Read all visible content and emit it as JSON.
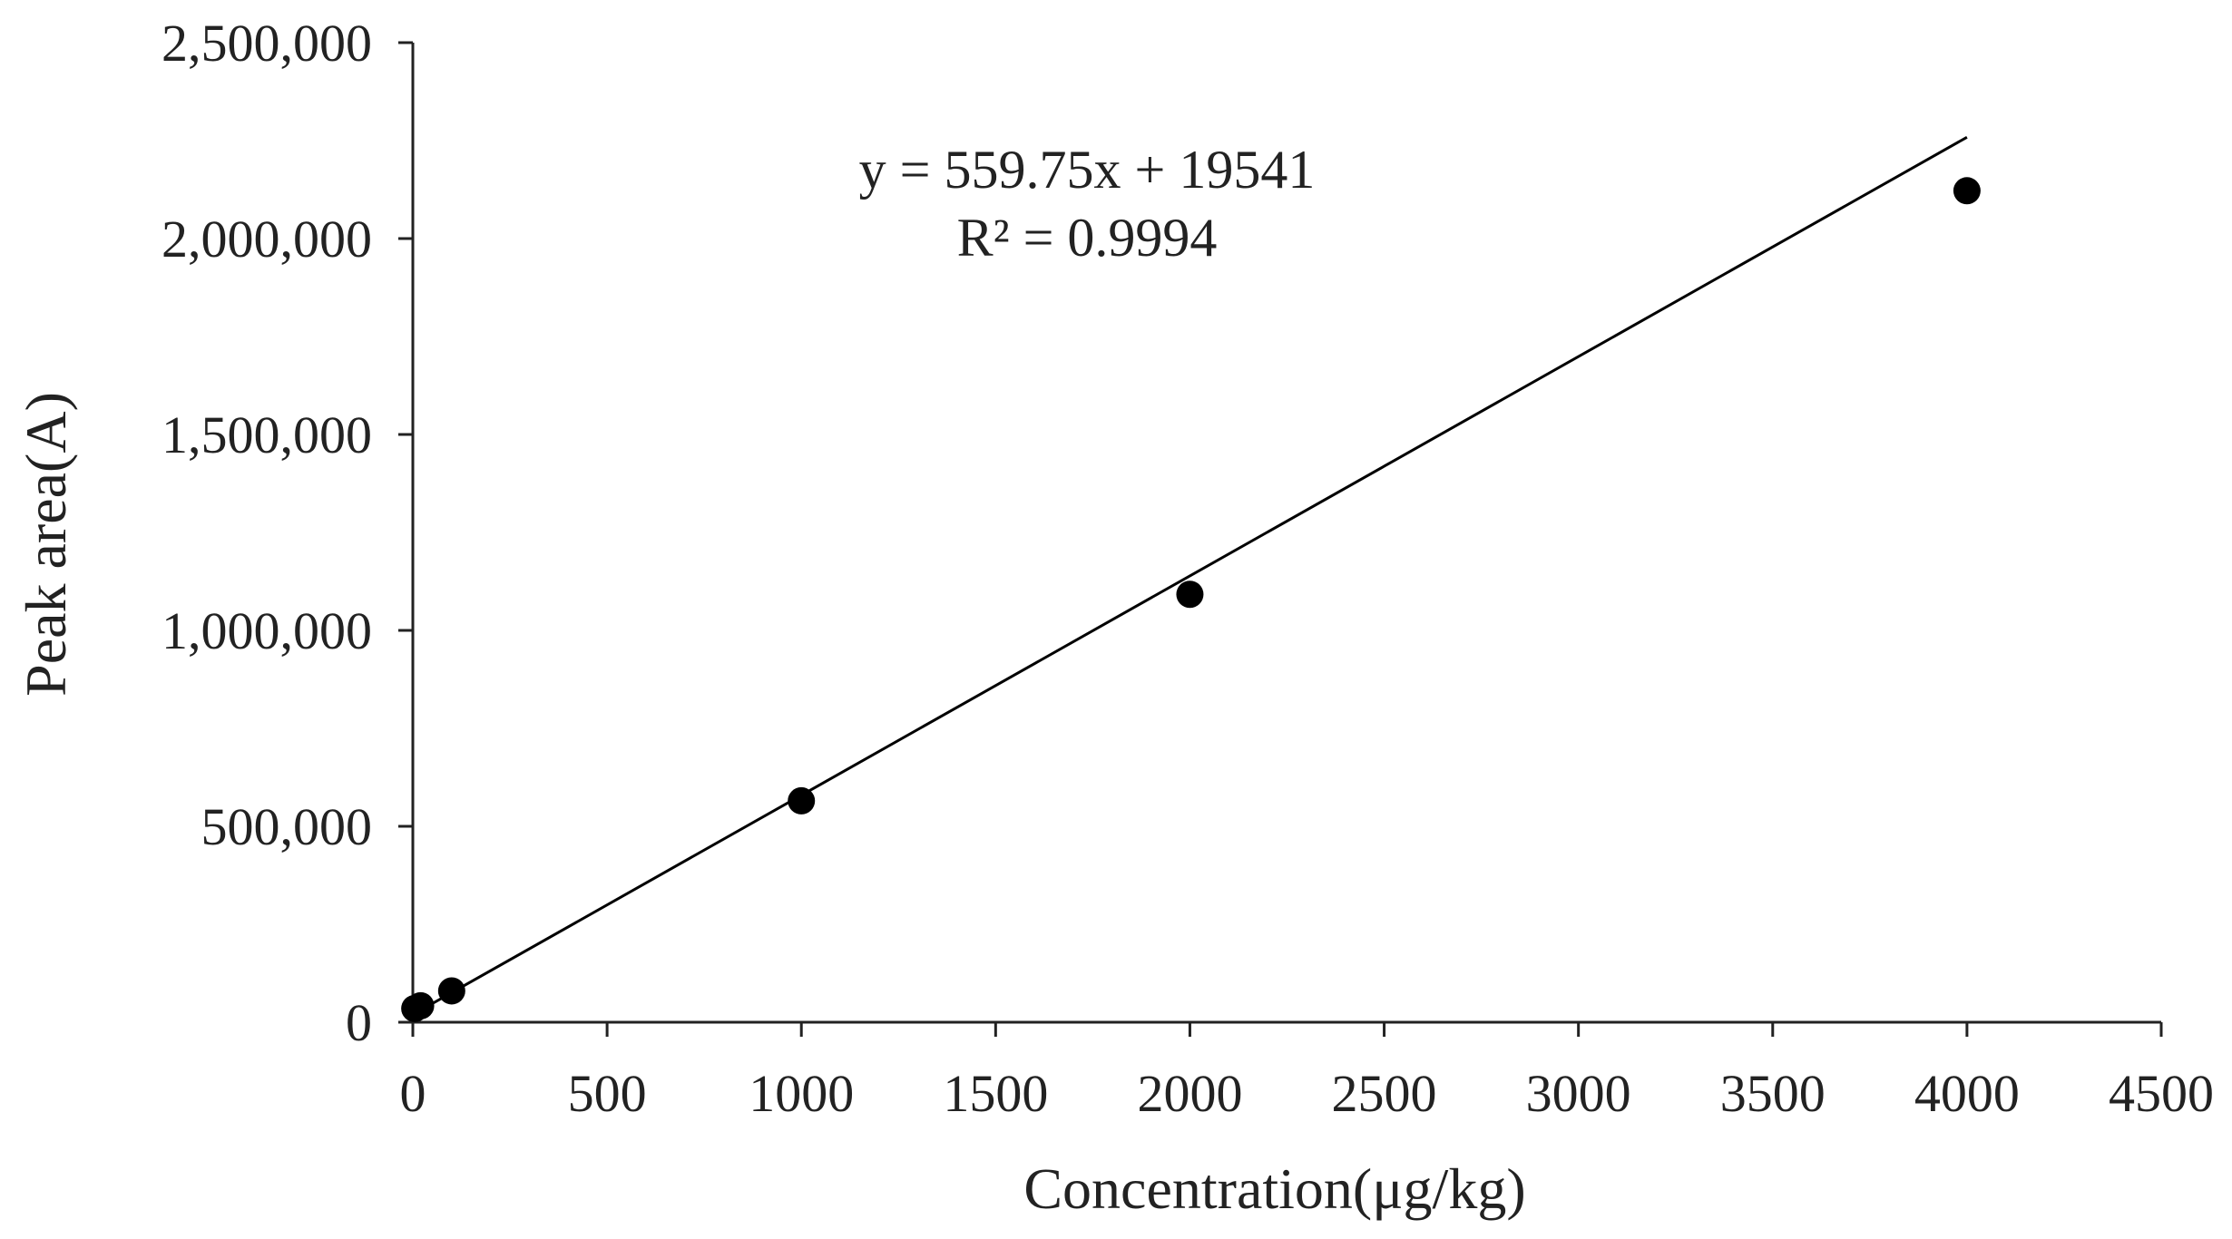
{
  "chart_data": {
    "type": "scatter",
    "title": "",
    "xlabel": "Concentration(μg/kg)",
    "ylabel": "Peak area(A)",
    "xlim": [
      0,
      4500
    ],
    "ylim": [
      0,
      2500000
    ],
    "x_ticks": [
      0,
      500,
      1000,
      1500,
      2000,
      2500,
      3000,
      3500,
      4000,
      4500
    ],
    "x_tick_labels": [
      "0",
      "500",
      "1000",
      "1500",
      "2000",
      "2500",
      "3000",
      "3500",
      "4000",
      "4500"
    ],
    "y_ticks": [
      0,
      500000,
      1000000,
      1500000,
      2000000,
      2500000
    ],
    "y_tick_labels": [
      "0",
      "500,000",
      "1,000,000",
      "1,500,000",
      "2,000,000",
      "2,500,000"
    ],
    "grid": false,
    "legend": "none",
    "series": [
      {
        "points": [
          {
            "x": 5,
            "y": 35000
          },
          {
            "x": 20,
            "y": 42000
          },
          {
            "x": 100,
            "y": 80000
          },
          {
            "x": 1000,
            "y": 565000
          },
          {
            "x": 2000,
            "y": 1092000
          },
          {
            "x": 4000,
            "y": 2122000
          }
        ]
      }
    ],
    "trendline": {
      "slope": 559.75,
      "intercept": 19541,
      "x_range": [
        0,
        4000
      ],
      "equation_label": "y = 559.75x + 19541",
      "r2_label": "R² = 0.9994"
    },
    "colors": {
      "axis": "#222222",
      "text": "#222222",
      "marker": "#000000",
      "line": "#000000"
    }
  }
}
